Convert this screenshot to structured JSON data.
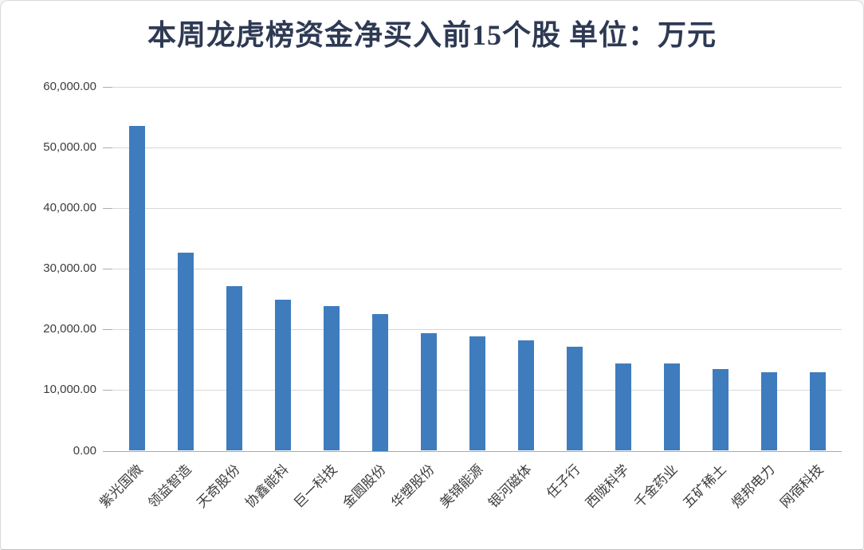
{
  "chart_data": {
    "type": "bar",
    "title": "本周龙虎榜资金净买入前15个股 单位：万元",
    "unit": "万元",
    "categories": [
      "紫光国微",
      "领益智造",
      "天奇股份",
      "协鑫能科",
      "巨一科技",
      "金圆股份",
      "华塑股份",
      "美锦能源",
      "银河磁体",
      "任子行",
      "西陇科学",
      "千金药业",
      "五矿稀土",
      "煜邦电力",
      "网宿科技"
    ],
    "values": [
      53500,
      32700,
      27200,
      24900,
      23800,
      22500,
      19400,
      18800,
      18200,
      17200,
      14400,
      14400,
      13500,
      12900,
      13000
    ],
    "ylim": [
      0,
      60000
    ],
    "ytick_values": [
      0,
      10000,
      20000,
      30000,
      40000,
      50000,
      60000
    ],
    "ytick_labels": [
      "0.00",
      "10,000.00",
      "20,000.00",
      "30,000.00",
      "40,000.00",
      "50,000.00",
      "60,000.00"
    ],
    "grid": true,
    "legend_visible": false,
    "bar_color": "#3E7CBE",
    "gridline_color": "#d8d8d8",
    "title_color": "#2e3a54",
    "axis_text_color": "#3d3d3d"
  }
}
